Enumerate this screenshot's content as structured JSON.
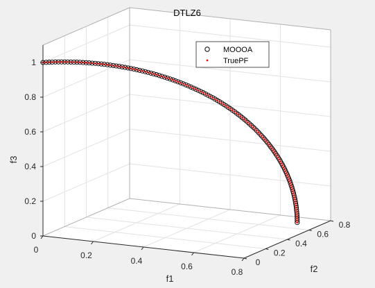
{
  "chart_data": {
    "type": "scatter",
    "projection": "3d",
    "title": "DTLZ6",
    "xlabel": "f1",
    "ylabel": "f2",
    "zlabel": "f3",
    "xlim": [
      0,
      0.8
    ],
    "ylim": [
      0,
      0.8
    ],
    "zlim": [
      0,
      1.1
    ],
    "xticks": [
      "0",
      "0.2",
      "0.4",
      "0.6",
      "0.8"
    ],
    "yticks": [
      "0",
      "0.2",
      "0.4",
      "0.6",
      "0.8"
    ],
    "zticks": [
      "0",
      "0.2",
      "0.4",
      "0.6",
      "0.8",
      "1"
    ],
    "grid": true,
    "legend_position": "top",
    "legend": [
      "MOOOA",
      "TruePF"
    ],
    "series": [
      {
        "name": "MOOOA",
        "marker": "open-circle",
        "color": "#000000",
        "description_curve": "f1 = f2 = sin(t)/sqrt(2), f3 = cos(t)",
        "t_range": [
          0,
          1.5708
        ],
        "points": 130
      },
      {
        "name": "TruePF",
        "marker": "dot",
        "color": "#ff0000",
        "t_range": [
          0,
          1.5708
        ],
        "points": 130
      }
    ]
  }
}
